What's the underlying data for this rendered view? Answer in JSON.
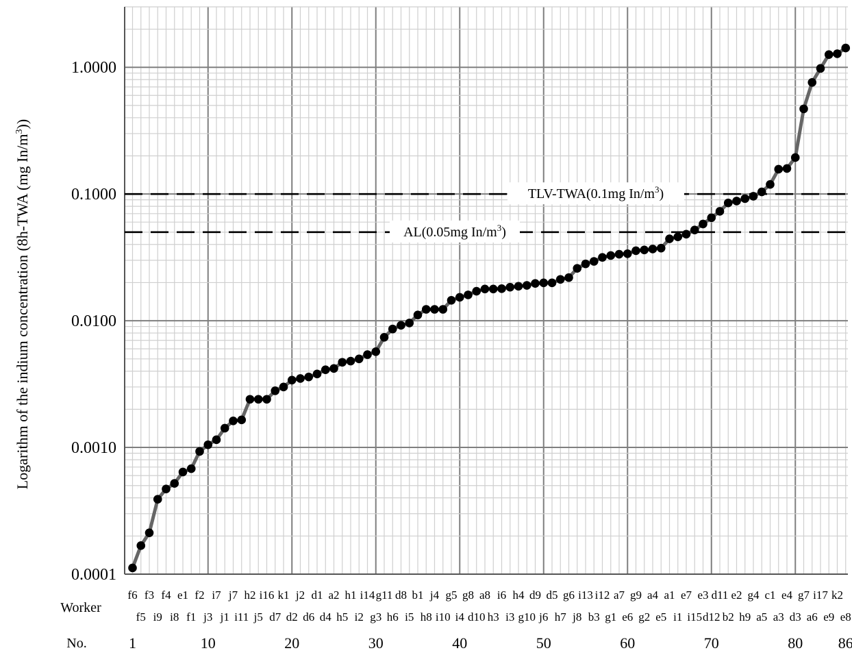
{
  "chart_data": {
    "type": "line",
    "ylabel": "Logarithm of the indium concentration (8h-TWA (mg In/m",
    "ylabel_sup": "3",
    "ylabel_tail": "))",
    "y_scale": "log",
    "ylim": [
      0.0001,
      3
    ],
    "y_tick_values": [
      0.0001,
      0.001,
      0.01,
      0.1,
      1
    ],
    "y_tick_labels": [
      "0.0001",
      "0.0010",
      "0.0100",
      "0.1000",
      "1.0000"
    ],
    "x_row_labels": {
      "worker": "Worker",
      "no": "No."
    },
    "x_number_ticks": [
      {
        "x": 1,
        "label": "1"
      },
      {
        "x": 10,
        "label": "10"
      },
      {
        "x": 20,
        "label": "20"
      },
      {
        "x": 30,
        "label": "30"
      },
      {
        "x": 40,
        "label": "40"
      },
      {
        "x": 50,
        "label": "50"
      },
      {
        "x": 60,
        "label": "60"
      },
      {
        "x": 70,
        "label": "70"
      },
      {
        "x": 80,
        "label": "80"
      },
      {
        "x": 86,
        "label": "86"
      }
    ],
    "grid": true,
    "x": [
      1,
      2,
      3,
      4,
      5,
      6,
      7,
      8,
      9,
      10,
      11,
      12,
      13,
      14,
      15,
      16,
      17,
      18,
      19,
      20,
      21,
      22,
      23,
      24,
      25,
      26,
      27,
      28,
      29,
      30,
      31,
      32,
      33,
      34,
      35,
      36,
      37,
      38,
      39,
      40,
      41,
      42,
      43,
      44,
      45,
      46,
      47,
      48,
      49,
      50,
      51,
      52,
      53,
      54,
      55,
      56,
      57,
      58,
      59,
      60,
      61,
      62,
      63,
      64,
      65,
      66,
      67,
      68,
      69,
      70,
      71,
      72,
      73,
      74,
      75,
      76,
      77,
      78,
      79,
      80,
      81,
      82,
      83,
      84,
      85,
      86
    ],
    "workers": [
      "f6",
      "f5",
      "f3",
      "i9",
      "f4",
      "i8",
      "e1",
      "f1",
      "f2",
      "j3",
      "i7",
      "j1",
      "j7",
      "i11",
      "h2",
      "j5",
      "i16",
      "d7",
      "k1",
      "d2",
      "j2",
      "d6",
      "d1",
      "d4",
      "a2",
      "h5",
      "h1",
      "i2",
      "i14",
      "g3",
      "g11",
      "h6",
      "d8",
      "i5",
      "b1",
      "h8",
      "j4",
      "i10",
      "g5",
      "i4",
      "g8",
      "d10",
      "a8",
      "h3",
      "i6",
      "i3",
      "h4",
      "g10",
      "d9",
      "j6",
      "d5",
      "h7",
      "g6",
      "j8",
      "i13",
      "b3",
      "i12",
      "g1",
      "a7",
      "e6",
      "g9",
      "g2",
      "a4",
      "e5",
      "a1",
      "i1",
      "e7",
      "i15",
      "e3",
      "d12",
      "d11",
      "b2",
      "e2",
      "h9",
      "g4",
      "a5",
      "c1",
      "a3",
      "e4",
      "d3",
      "g7",
      "a6",
      "i17",
      "e9",
      "k2",
      "e8"
    ],
    "series": [
      {
        "values": [
          0.000112,
          0.000168,
          0.000212,
          0.00039,
          0.00047,
          0.00052,
          0.00064,
          0.00068,
          0.00093,
          0.00105,
          0.00115,
          0.00142,
          0.00162,
          0.00165,
          0.0024,
          0.0024,
          0.0024,
          0.0028,
          0.003,
          0.0034,
          0.0035,
          0.0036,
          0.0038,
          0.0041,
          0.0042,
          0.0047,
          0.0048,
          0.005,
          0.0054,
          0.0057,
          0.0074,
          0.0086,
          0.0092,
          0.0096,
          0.0111,
          0.0123,
          0.0123,
          0.0123,
          0.0145,
          0.0153,
          0.016,
          0.0171,
          0.0178,
          0.0178,
          0.0179,
          0.0184,
          0.0187,
          0.019,
          0.0197,
          0.0199,
          0.0199,
          0.0212,
          0.0219,
          0.0259,
          0.0281,
          0.0294,
          0.0316,
          0.0327,
          0.0335,
          0.0338,
          0.0357,
          0.0362,
          0.0368,
          0.0374,
          0.0443,
          0.0459,
          0.0482,
          0.052,
          0.058,
          0.065,
          0.073,
          0.085,
          0.088,
          0.092,
          0.096,
          0.104,
          0.119,
          0.157,
          0.159,
          0.194,
          0.47,
          0.76,
          0.98,
          1.26,
          1.28,
          1.42
        ]
      }
    ],
    "reference_lines": [
      {
        "value": 0.1,
        "label": "TLV-TWA(0.1mg In/m",
        "label_sup": "3",
        "label_tail": ")"
      },
      {
        "value": 0.05,
        "label": "AL(0.05mg In/m",
        "label_sup": "3",
        "label_tail": ")"
      }
    ],
    "colors": {
      "line": "#666666",
      "marker": "#000000",
      "grid_major": "#7f7f7f",
      "grid_minor": "#cfcfcf",
      "reference": "#000000"
    }
  }
}
